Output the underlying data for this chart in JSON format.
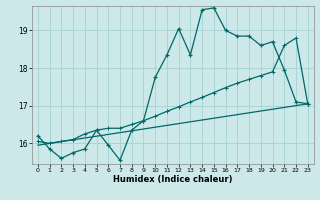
{
  "xlabel": "Humidex (Indice chaleur)",
  "bg_color": "#cce8e8",
  "grid_color": "#aad4d4",
  "line_color": "#006868",
  "xlim": [
    -0.5,
    23.5
  ],
  "ylim": [
    15.45,
    19.65
  ],
  "yticks": [
    16,
    17,
    18,
    19
  ],
  "xticks": [
    0,
    1,
    2,
    3,
    4,
    5,
    6,
    7,
    8,
    9,
    10,
    11,
    12,
    13,
    14,
    15,
    16,
    17,
    18,
    19,
    20,
    21,
    22,
    23
  ],
  "series1_x": [
    0,
    1,
    2,
    3,
    4,
    5,
    6,
    7,
    8,
    9,
    10,
    11,
    12,
    13,
    14,
    15,
    16,
    17,
    18,
    19,
    20,
    21,
    22,
    23
  ],
  "series1_y": [
    16.2,
    15.85,
    15.6,
    15.75,
    15.85,
    16.35,
    15.95,
    15.55,
    16.35,
    16.6,
    17.75,
    18.35,
    19.05,
    18.35,
    19.55,
    19.6,
    19.0,
    18.85,
    18.85,
    18.6,
    18.7,
    17.95,
    17.1,
    17.05
  ],
  "series2_x": [
    0,
    1,
    2,
    3,
    4,
    5,
    6,
    7,
    8,
    9,
    10,
    11,
    12,
    13,
    14,
    15,
    16,
    17,
    18,
    19,
    20,
    21,
    22,
    23
  ],
  "series2_y": [
    16.05,
    16.0,
    16.05,
    16.1,
    16.25,
    16.35,
    16.4,
    16.4,
    16.5,
    16.6,
    16.72,
    16.85,
    16.97,
    17.1,
    17.22,
    17.35,
    17.48,
    17.6,
    17.7,
    17.8,
    17.9,
    18.6,
    18.8,
    17.05
  ],
  "series3_x": [
    0,
    23
  ],
  "series3_y": [
    15.95,
    17.05
  ]
}
